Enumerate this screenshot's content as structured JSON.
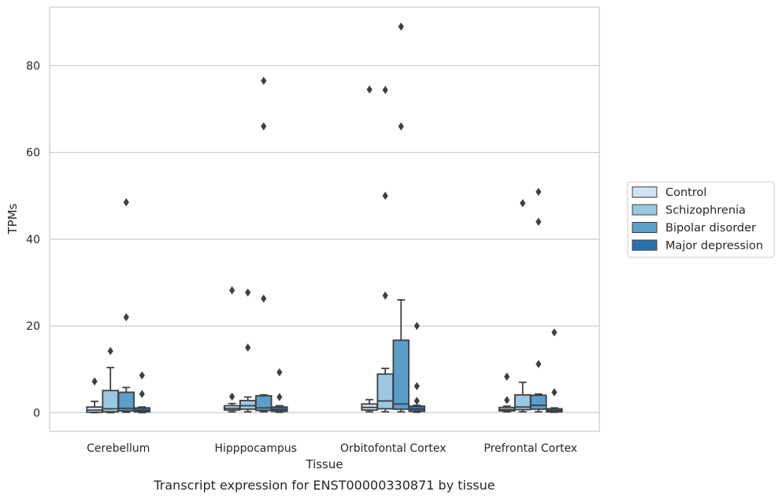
{
  "chart_data": {
    "type": "box",
    "title": "",
    "caption": "Transcript expression for ENST00000330871 by tissue",
    "xlabel": "Tissue",
    "ylabel": "TPMs",
    "ylim": [
      -4.3,
      93.5
    ],
    "yticks": [
      0,
      20,
      40,
      60,
      80
    ],
    "grid": "horizontal",
    "legend_position": "right",
    "categories": [
      "Cerebellum",
      "Hipppocampus",
      "Orbitofontal Cortex",
      "Prefrontal Cortex"
    ],
    "series": [
      {
        "name": "Control",
        "color": "#d2e3f3",
        "boxes": [
          {
            "q1": 0.1,
            "median": 0.6,
            "q3": 1.3,
            "whisker_low": 0.0,
            "whisker_high": 2.6,
            "outliers": [
              7.2
            ]
          },
          {
            "q1": 0.6,
            "median": 1.0,
            "q3": 1.6,
            "whisker_low": 0.2,
            "whisker_high": 2.1,
            "outliers": [
              3.7,
              28.2
            ]
          },
          {
            "q1": 0.6,
            "median": 1.2,
            "q3": 2.0,
            "whisker_low": 0.2,
            "whisker_high": 3.0,
            "outliers": [
              74.5
            ]
          },
          {
            "q1": 0.4,
            "median": 0.7,
            "q3": 1.2,
            "whisker_low": 0.2,
            "whisker_high": 1.5,
            "outliers": [
              2.9,
              8.3
            ]
          }
        ]
      },
      {
        "name": "Schizophrenia",
        "color": "#9ac8e0",
        "boxes": [
          {
            "q1": 0.2,
            "median": 0.9,
            "q3": 5.1,
            "whisker_low": 0.0,
            "whisker_high": 10.4,
            "outliers": [
              14.2
            ]
          },
          {
            "q1": 0.8,
            "median": 1.6,
            "q3": 2.8,
            "whisker_low": 0.2,
            "whisker_high": 3.6,
            "outliers": [
              15.0,
              27.7
            ]
          },
          {
            "q1": 0.9,
            "median": 2.7,
            "q3": 8.9,
            "whisker_low": 0.2,
            "whisker_high": 10.2,
            "outliers": [
              27.0,
              50.0,
              74.4
            ]
          },
          {
            "q1": 0.7,
            "median": 1.3,
            "q3": 4.1,
            "whisker_low": 0.2,
            "whisker_high": 7.0,
            "outliers": [
              48.3
            ]
          }
        ]
      },
      {
        "name": "Bipolar disorder",
        "color": "#5a9ec9",
        "boxes": [
          {
            "q1": 0.4,
            "median": 1.0,
            "q3": 4.7,
            "whisker_low": 0.1,
            "whisker_high": 5.8,
            "outliers": [
              22.0,
              48.5
            ]
          },
          {
            "q1": 0.5,
            "median": 1.1,
            "q3": 3.9,
            "whisker_low": 0.2,
            "whisker_high": 4.1,
            "outliers": [
              26.3,
              66.0,
              76.5
            ]
          },
          {
            "q1": 0.8,
            "median": 2.0,
            "q3": 16.7,
            "whisker_low": 0.2,
            "whisker_high": 26.0,
            "outliers": [
              66.0,
              89.0
            ]
          },
          {
            "q1": 0.8,
            "median": 1.7,
            "q3": 4.0,
            "whisker_low": 0.2,
            "whisker_high": 4.3,
            "outliers": [
              11.2,
              44.0,
              50.9
            ]
          }
        ]
      },
      {
        "name": "Major depression",
        "color": "#2c6fae",
        "boxes": [
          {
            "q1": 0.2,
            "median": 0.5,
            "q3": 1.1,
            "whisker_low": 0.0,
            "whisker_high": 1.3,
            "outliers": [
              4.3,
              8.6
            ]
          },
          {
            "q1": 0.3,
            "median": 0.7,
            "q3": 1.3,
            "whisker_low": 0.1,
            "whisker_high": 1.6,
            "outliers": [
              3.6,
              9.3
            ]
          },
          {
            "q1": 0.3,
            "median": 0.8,
            "q3": 1.5,
            "whisker_low": 0.1,
            "whisker_high": 1.7,
            "outliers": [
              2.7,
              6.1,
              20.0
            ]
          },
          {
            "q1": 0.2,
            "median": 0.5,
            "q3": 0.9,
            "whisker_low": 0.1,
            "whisker_high": 1.1,
            "outliers": [
              4.7,
              18.5
            ]
          }
        ]
      }
    ]
  }
}
